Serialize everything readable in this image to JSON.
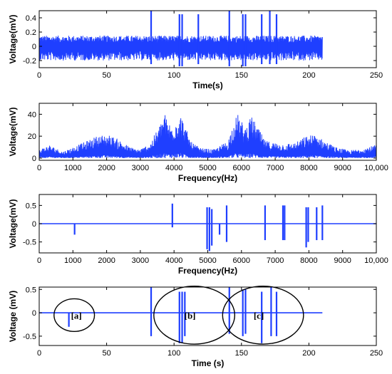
{
  "colors": {
    "signal": "#1f3fff",
    "axis": "#000000"
  },
  "chart_data": [
    {
      "type": "line",
      "xlabel": "Time(s)",
      "ylabel": "Voltage(mV)",
      "xlim": [
        0,
        250
      ],
      "ylim": [
        -0.3,
        0.5
      ],
      "xticks": [
        "0",
        "50",
        "100",
        "150",
        "200",
        "250"
      ],
      "yticks": [
        "-0.2",
        "0",
        "0.2",
        "0.4"
      ],
      "xtick_values": [
        0,
        50,
        100,
        150,
        200,
        250
      ],
      "ytick_values": [
        -0.2,
        0,
        0.2,
        0.4
      ],
      "signal": {
        "x_range": [
          0,
          210
        ],
        "noise_band": [
          -0.2,
          0.15
        ]
      },
      "spikes": [
        {
          "x": 83,
          "lo": -0.25,
          "hi": 0.5
        },
        {
          "x": 104,
          "lo": -0.28,
          "hi": 0.45
        },
        {
          "x": 106,
          "lo": -0.28,
          "hi": 0.45
        },
        {
          "x": 118,
          "lo": -0.25,
          "hi": 0.45
        },
        {
          "x": 141,
          "lo": -0.28,
          "hi": 0.5
        },
        {
          "x": 151,
          "lo": -0.28,
          "hi": 0.45
        },
        {
          "x": 153,
          "lo": -0.28,
          "hi": 0.45
        },
        {
          "x": 165,
          "lo": -0.25,
          "hi": 0.45
        },
        {
          "x": 171,
          "lo": -0.25,
          "hi": 0.5
        },
        {
          "x": 176,
          "lo": -0.25,
          "hi": 0.45
        }
      ]
    },
    {
      "type": "line",
      "xlabel": "Frequency(Hz)",
      "ylabel": "Voltage(mV)",
      "xlim": [
        0,
        10000
      ],
      "ylim": [
        -2,
        50
      ],
      "xticks": [
        "0",
        "1000",
        "2000",
        "3000",
        "4000",
        "5000",
        "6000",
        "7000",
        "8000",
        "9000",
        "10,000"
      ],
      "yticks": [
        "0",
        "20",
        "40"
      ],
      "xtick_values": [
        0,
        1000,
        2000,
        3000,
        4000,
        5000,
        6000,
        7000,
        8000,
        9000,
        10000
      ],
      "ytick_values": [
        0,
        20,
        40
      ],
      "envelope": {
        "x": [
          0,
          300,
          700,
          1000,
          1300,
          1700,
          2000,
          2300,
          2700,
          3000,
          3300,
          3600,
          3700,
          3900,
          4100,
          4200,
          4500,
          4800,
          5200,
          5600,
          5800,
          5900,
          6100,
          6300,
          6400,
          6700,
          7200,
          7600,
          7900,
          8200,
          8400,
          8800,
          9200,
          9600,
          10000
        ],
        "y": [
          8,
          12,
          6,
          10,
          14,
          20,
          22,
          18,
          10,
          8,
          14,
          32,
          42,
          30,
          38,
          40,
          15,
          9,
          8,
          16,
          36,
          40,
          28,
          38,
          33,
          16,
          13,
          14,
          20,
          22,
          17,
          10,
          7,
          9,
          12
        ]
      }
    },
    {
      "type": "line",
      "xlabel": "Frequency(Hz)",
      "ylabel": "Voltage(mV)",
      "xlim": [
        0,
        10000
      ],
      "ylim": [
        -0.8,
        0.8
      ],
      "xticks": [
        "0",
        "1000",
        "2000",
        "3000",
        "4000",
        "5000",
        "6000",
        "7000",
        "8000",
        "9000",
        "10,000"
      ],
      "yticks": [
        "-0.5",
        "0",
        "0.5"
      ],
      "xtick_values": [
        0,
        1000,
        2000,
        3000,
        4000,
        5000,
        6000,
        7000,
        8000,
        9000,
        10000
      ],
      "ytick_values": [
        -0.5,
        0,
        0.5
      ],
      "baseline": {
        "x_range": [
          0,
          10000
        ],
        "y": 0
      },
      "spikes": [
        {
          "x": 1050,
          "lo": -0.3,
          "hi": 0
        },
        {
          "x": 3950,
          "lo": -0.1,
          "hi": 0.55
        },
        {
          "x": 4980,
          "lo": -0.7,
          "hi": 0.45
        },
        {
          "x": 5050,
          "lo": -0.75,
          "hi": 0.45
        },
        {
          "x": 5120,
          "lo": -0.6,
          "hi": 0.4
        },
        {
          "x": 5350,
          "lo": -0.3,
          "hi": 0
        },
        {
          "x": 5560,
          "lo": -0.5,
          "hi": 0.5
        },
        {
          "x": 6700,
          "lo": -0.45,
          "hi": 0.5
        },
        {
          "x": 7230,
          "lo": -0.45,
          "hi": 0.5
        },
        {
          "x": 7280,
          "lo": -0.45,
          "hi": 0.5
        },
        {
          "x": 7920,
          "lo": -0.65,
          "hi": 0.45
        },
        {
          "x": 7980,
          "lo": -0.5,
          "hi": 0.45
        },
        {
          "x": 8230,
          "lo": -0.45,
          "hi": 0.45
        },
        {
          "x": 8400,
          "lo": -0.45,
          "hi": 0.5
        }
      ]
    },
    {
      "type": "line",
      "xlabel": "Time (s)",
      "ylabel": "Voltage (mV)",
      "xlim": [
        0,
        250
      ],
      "ylim": [
        -0.7,
        0.55
      ],
      "xticks": [
        "0",
        "50",
        "100",
        "150",
        "200",
        "250"
      ],
      "yticks": [
        "-0.5",
        "0",
        "0.5"
      ],
      "xtick_values": [
        0,
        50,
        100,
        150,
        200,
        250
      ],
      "ytick_values": [
        -0.5,
        0,
        0.5
      ],
      "baseline": {
        "x_range": [
          0,
          210
        ],
        "y": 0
      },
      "spikes": [
        {
          "x": 22,
          "lo": -0.3,
          "hi": 0
        },
        {
          "x": 83,
          "lo": -0.5,
          "hi": 0.55
        },
        {
          "x": 104,
          "lo": -0.65,
          "hi": 0.45
        },
        {
          "x": 106,
          "lo": -0.65,
          "hi": 0.45
        },
        {
          "x": 108,
          "lo": -0.5,
          "hi": 0.45
        },
        {
          "x": 141,
          "lo": -0.45,
          "hi": 0.55
        },
        {
          "x": 151,
          "lo": -0.5,
          "hi": 0.5
        },
        {
          "x": 153,
          "lo": -0.45,
          "hi": 0.5
        },
        {
          "x": 165,
          "lo": -0.65,
          "hi": 0.45
        },
        {
          "x": 172,
          "lo": -0.5,
          "hi": 0.55
        },
        {
          "x": 176,
          "lo": -0.5,
          "hi": 0.45
        }
      ],
      "annotations": [
        {
          "label": "[a]",
          "cx": 26,
          "cy": -0.05,
          "rx": 15,
          "ry": 0.35
        },
        {
          "label": "[b]",
          "cx": 115,
          "cy": -0.05,
          "rx": 30,
          "ry": 0.62
        },
        {
          "label": "[c]",
          "cx": 166,
          "cy": -0.05,
          "rx": 30,
          "ry": 0.62
        }
      ]
    }
  ]
}
